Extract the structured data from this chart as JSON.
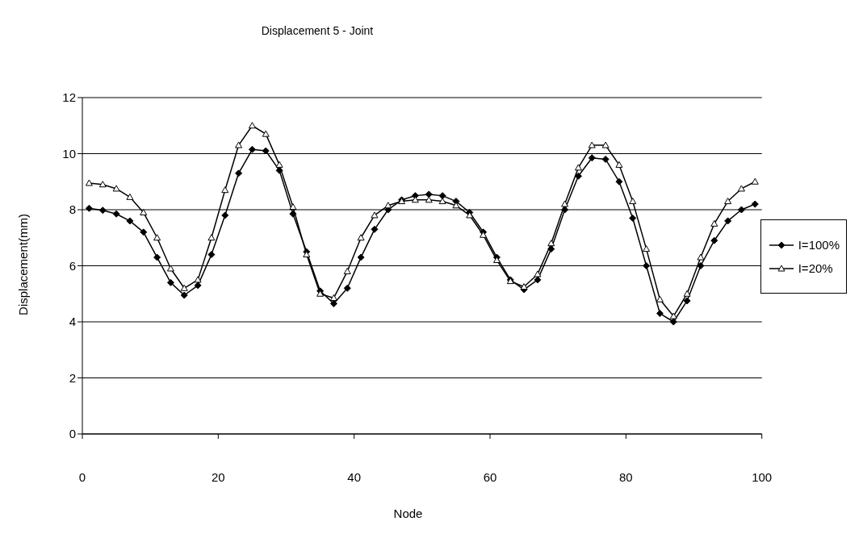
{
  "chart_data": {
    "type": "line",
    "title": "Displacement  5 - Joint",
    "xlabel": "Node",
    "ylabel": "Displacement(mm)",
    "xlim": [
      0,
      100
    ],
    "xticks": [
      0,
      20,
      40,
      60,
      80,
      100
    ],
    "ylim": [
      0,
      12
    ],
    "yticks": [
      0,
      2,
      4,
      6,
      8,
      10,
      12
    ],
    "grid": "y",
    "legend": "right",
    "line_style": "solid",
    "x": [
      1,
      3,
      5,
      7,
      9,
      11,
      13,
      15,
      17,
      19,
      21,
      23,
      25,
      27,
      29,
      31,
      33,
      35,
      37,
      39,
      41,
      43,
      45,
      47,
      49,
      51,
      53,
      55,
      57,
      59,
      61,
      63,
      65,
      67,
      69,
      71,
      73,
      75,
      77,
      79,
      81,
      83,
      85,
      87,
      89,
      91,
      93,
      95,
      97,
      99
    ],
    "series": [
      {
        "name": "I=100%",
        "color": "#000000",
        "marker": "diamond",
        "values": [
          8.05,
          7.98,
          7.85,
          7.6,
          7.2,
          6.3,
          5.4,
          4.95,
          5.3,
          6.4,
          7.8,
          9.3,
          10.15,
          10.1,
          9.4,
          7.85,
          6.5,
          5.1,
          4.65,
          5.2,
          6.3,
          7.3,
          8.0,
          8.35,
          8.5,
          8.55,
          8.5,
          8.3,
          7.9,
          7.2,
          6.3,
          5.5,
          5.15,
          5.5,
          6.6,
          8.0,
          9.2,
          9.85,
          9.8,
          9.0,
          7.7,
          6.0,
          4.3,
          4.0,
          4.75,
          6.0,
          6.9,
          7.6,
          8.0,
          8.2
        ]
      },
      {
        "name": "I=20%",
        "color": "#000000",
        "marker": "triangle",
        "values": [
          8.95,
          8.9,
          8.75,
          8.45,
          7.9,
          7.0,
          5.9,
          5.2,
          5.5,
          7.0,
          8.7,
          10.3,
          11.0,
          10.7,
          9.6,
          8.1,
          6.4,
          5.0,
          4.85,
          5.8,
          7.0,
          7.8,
          8.15,
          8.3,
          8.35,
          8.35,
          8.3,
          8.15,
          7.8,
          7.1,
          6.2,
          5.45,
          5.25,
          5.7,
          6.8,
          8.2,
          9.5,
          10.3,
          10.3,
          9.6,
          8.3,
          6.6,
          4.8,
          4.2,
          5.0,
          6.3,
          7.5,
          8.3,
          8.75,
          9.0
        ]
      }
    ]
  }
}
